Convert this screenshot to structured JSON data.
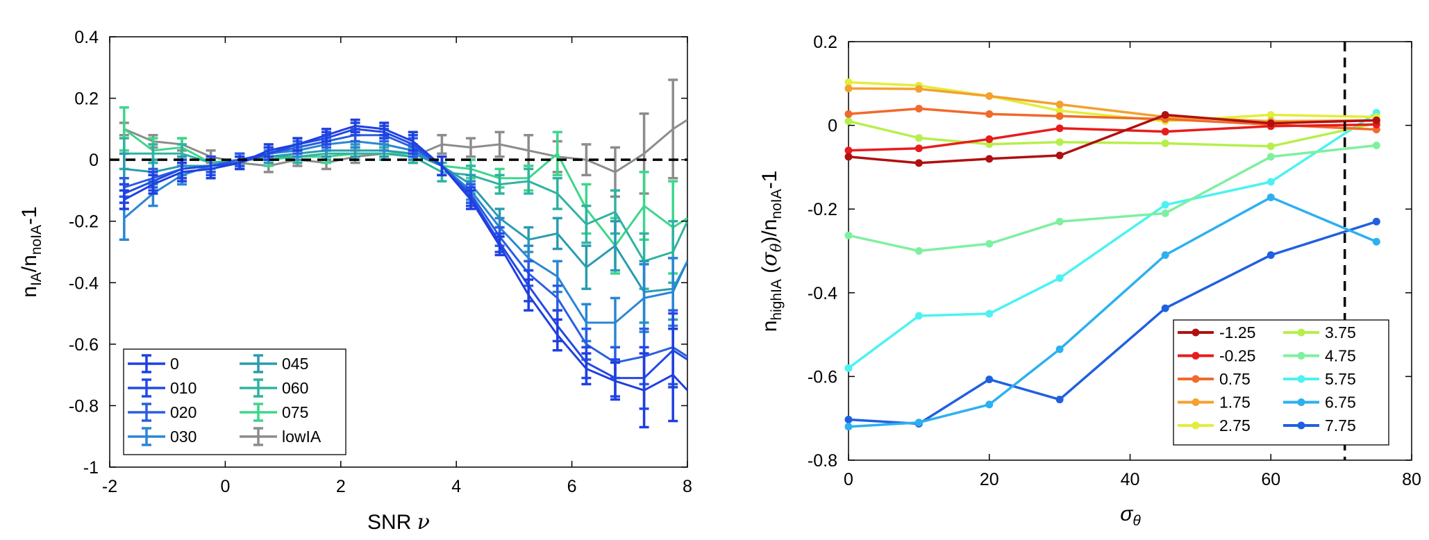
{
  "chart_data": [
    {
      "type": "line",
      "xlabel": "SNR ν",
      "ylabel": "n_IA/n_noIA -1",
      "xlim": [
        -2,
        8
      ],
      "ylim": [
        -1,
        0.4
      ],
      "xticks": [
        -2,
        0,
        2,
        4,
        6,
        8
      ],
      "yticks": [
        0.4,
        0.2,
        0,
        -0.2,
        -0.4,
        -0.6,
        -0.8,
        -1
      ],
      "xtick_labels": [
        "-2",
        "0",
        "2",
        "4",
        "6",
        "8"
      ],
      "ytick_labels": [
        "0.4",
        "0.2",
        "0",
        "-0.2",
        "-0.4",
        "-0.6",
        "-0.8",
        "-1"
      ],
      "reference_line_y": 0,
      "legend_position": "bottom-left",
      "error_bars": true,
      "x": [
        -1.75,
        -1.25,
        -0.75,
        -0.25,
        0.25,
        0.75,
        1.25,
        1.75,
        2.25,
        2.75,
        3.25,
        3.75,
        4.25,
        4.75,
        5.25,
        5.75,
        6.25,
        6.75,
        7.25,
        7.75,
        8.0
      ],
      "series": [
        {
          "name": "0",
          "color": "#1f3fe0",
          "values": [
            -0.13,
            -0.08,
            -0.04,
            -0.03,
            -0.01,
            0.03,
            0.05,
            0.08,
            0.11,
            0.1,
            0.06,
            -0.02,
            -0.13,
            -0.28,
            -0.44,
            -0.57,
            -0.68,
            -0.72,
            -0.75,
            -0.7,
            -0.75
          ],
          "errors": [
            0.03,
            0.03,
            0.03,
            0.03,
            0.02,
            0.02,
            0.02,
            0.02,
            0.02,
            0.02,
            0.03,
            0.03,
            0.03,
            0.03,
            0.05,
            0.05,
            0.05,
            0.06,
            0.12,
            0.15,
            0
          ]
        },
        {
          "name": "010",
          "color": "#2448e6",
          "values": [
            -0.11,
            -0.07,
            -0.03,
            -0.02,
            -0.01,
            0.02,
            0.05,
            0.07,
            0.1,
            0.09,
            0.05,
            -0.02,
            -0.12,
            -0.27,
            -0.41,
            -0.54,
            -0.66,
            -0.71,
            -0.71,
            -0.62,
            -0.65
          ],
          "errors": [
            0.03,
            0.03,
            0.03,
            0.03,
            0.02,
            0.02,
            0.02,
            0.02,
            0.02,
            0.02,
            0.03,
            0.03,
            0.03,
            0.03,
            0.05,
            0.05,
            0.05,
            0.06,
            0.1,
            0.12,
            0
          ]
        },
        {
          "name": "020",
          "color": "#2a5ee0",
          "values": [
            -0.09,
            -0.06,
            -0.03,
            -0.02,
            0.0,
            0.02,
            0.04,
            0.06,
            0.08,
            0.08,
            0.04,
            -0.02,
            -0.11,
            -0.25,
            -0.37,
            -0.45,
            -0.6,
            -0.66,
            -0.64,
            -0.61,
            -0.64
          ],
          "errors": [
            0.03,
            0.03,
            0.03,
            0.02,
            0.02,
            0.02,
            0.02,
            0.02,
            0.02,
            0.02,
            0.03,
            0.03,
            0.03,
            0.03,
            0.04,
            0.04,
            0.05,
            0.05,
            0.09,
            0.12,
            0
          ]
        },
        {
          "name": "030",
          "color": "#2a86d4",
          "values": [
            -0.19,
            -0.11,
            -0.05,
            -0.02,
            0.0,
            0.02,
            0.03,
            0.05,
            0.06,
            0.05,
            0.03,
            -0.02,
            -0.1,
            -0.22,
            -0.32,
            -0.38,
            -0.53,
            -0.53,
            -0.45,
            -0.43,
            -0.33
          ],
          "errors": [
            0.07,
            0.04,
            0.03,
            0.02,
            0.02,
            0.02,
            0.02,
            0.02,
            0.02,
            0.02,
            0.02,
            0.03,
            0.03,
            0.03,
            0.04,
            0.05,
            0.06,
            0.08,
            0.11,
            0.11,
            0
          ]
        },
        {
          "name": "045",
          "color": "#2a9bb0",
          "values": [
            -0.03,
            -0.04,
            -0.02,
            -0.02,
            0.0,
            0.01,
            0.02,
            0.03,
            0.03,
            0.03,
            0.02,
            -0.02,
            -0.08,
            -0.19,
            -0.26,
            -0.24,
            -0.35,
            -0.28,
            -0.43,
            -0.42,
            -0.33
          ],
          "errors": [
            0.05,
            0.04,
            0.03,
            0.02,
            0.02,
            0.02,
            0.02,
            0.02,
            0.02,
            0.02,
            0.02,
            0.03,
            0.03,
            0.03,
            0.04,
            0.05,
            0.07,
            0.08,
            0.1,
            0.1,
            0
          ]
        },
        {
          "name": "060",
          "color": "#2fb3a0",
          "values": [
            0.02,
            0.02,
            0.02,
            -0.01,
            0.0,
            0.01,
            0.01,
            0.02,
            0.02,
            0.02,
            0.01,
            -0.04,
            -0.05,
            -0.08,
            -0.07,
            -0.11,
            -0.21,
            -0.17,
            -0.33,
            -0.3,
            -0.2
          ],
          "errors": [
            0.05,
            0.03,
            0.03,
            0.02,
            0.02,
            0.02,
            0.02,
            0.02,
            0.02,
            0.02,
            0.02,
            0.03,
            0.03,
            0.03,
            0.04,
            0.05,
            0.06,
            0.07,
            0.09,
            0.1,
            0
          ]
        },
        {
          "name": "075",
          "color": "#3dd68a",
          "values": [
            0.1,
            0.03,
            0.04,
            -0.01,
            0.0,
            0.0,
            0.01,
            0.01,
            0.02,
            0.02,
            0.02,
            -0.02,
            -0.03,
            -0.06,
            -0.06,
            0.02,
            -0.16,
            -0.28,
            -0.15,
            -0.22,
            -0.19
          ],
          "errors": [
            0.07,
            0.04,
            0.03,
            0.02,
            0.02,
            0.02,
            0.02,
            0.02,
            0.02,
            0.02,
            0.02,
            0.03,
            0.03,
            0.03,
            0.04,
            0.07,
            0.08,
            0.09,
            0.11,
            0.15,
            0
          ]
        },
        {
          "name": "lowIA",
          "color": "#8c8c8c",
          "values": [
            0.1,
            0.06,
            0.05,
            0.01,
            -0.01,
            -0.02,
            0.0,
            -0.01,
            0.01,
            0.02,
            0.01,
            0.05,
            0.04,
            0.05,
            0.03,
            0.01,
            0.0,
            -0.04,
            0.02,
            0.1,
            0.13
          ],
          "errors": [
            0.02,
            0.02,
            0.02,
            0.02,
            0.02,
            0.02,
            0.02,
            0.02,
            0.02,
            0.02,
            0.02,
            0.03,
            0.03,
            0.04,
            0.05,
            0.05,
            0.05,
            0.08,
            0.13,
            0.16,
            0
          ]
        }
      ]
    },
    {
      "type": "line",
      "xlabel": "σθ",
      "ylabel": "n_highIA (σθ)/n_noIA -1",
      "xlim": [
        0,
        80
      ],
      "ylim": [
        -0.8,
        0.2
      ],
      "xticks": [
        0,
        20,
        40,
        60,
        80
      ],
      "yticks": [
        0.2,
        0,
        -0.2,
        -0.4,
        -0.6,
        -0.8
      ],
      "xtick_labels": [
        "0",
        "20",
        "40",
        "60",
        "80"
      ],
      "ytick_labels": [
        "0.2",
        "0",
        "-0.2",
        "-0.4",
        "-0.6",
        "-0.8"
      ],
      "reference_line_x": 70.5,
      "legend_position": "bottom-right",
      "x": [
        0,
        10,
        20,
        30,
        45,
        60,
        75
      ],
      "series": [
        {
          "name": "-1.25",
          "color": "#b01010",
          "values": [
            -0.075,
            -0.09,
            -0.08,
            -0.072,
            0.025,
            0.005,
            0.012
          ]
        },
        {
          "name": "-0.25",
          "color": "#e81c1c",
          "values": [
            -0.06,
            -0.055,
            -0.033,
            -0.007,
            -0.015,
            -0.002,
            0.002
          ]
        },
        {
          "name": "0.75",
          "color": "#f06a2a",
          "values": [
            0.027,
            0.04,
            0.027,
            0.022,
            0.015,
            0.002,
            -0.01
          ]
        },
        {
          "name": "1.75",
          "color": "#f4a030",
          "values": [
            0.088,
            0.087,
            0.07,
            0.05,
            0.02,
            0.01,
            0.012
          ]
        },
        {
          "name": "2.75",
          "color": "#e2ee3a",
          "values": [
            0.103,
            0.095,
            0.07,
            0.035,
            0.01,
            0.025,
            0.02
          ]
        },
        {
          "name": "3.75",
          "color": "#b6ef4a",
          "values": [
            0.01,
            -0.03,
            -0.045,
            -0.04,
            -0.043,
            -0.05,
            0.005
          ]
        },
        {
          "name": "4.75",
          "color": "#7ef0a0",
          "values": [
            -0.263,
            -0.3,
            -0.283,
            -0.23,
            -0.21,
            -0.075,
            -0.048
          ]
        },
        {
          "name": "5.75",
          "color": "#4cf2f2",
          "values": [
            -0.58,
            -0.455,
            -0.45,
            -0.365,
            -0.19,
            -0.135,
            0.03
          ]
        },
        {
          "name": "6.75",
          "color": "#2cb0f0",
          "values": [
            -0.72,
            -0.71,
            -0.667,
            -0.535,
            -0.31,
            -0.172,
            -0.278
          ]
        },
        {
          "name": "7.75",
          "color": "#1f60e0",
          "values": [
            -0.703,
            -0.713,
            -0.607,
            -0.655,
            -0.437,
            -0.31,
            -0.23
          ]
        }
      ]
    }
  ]
}
